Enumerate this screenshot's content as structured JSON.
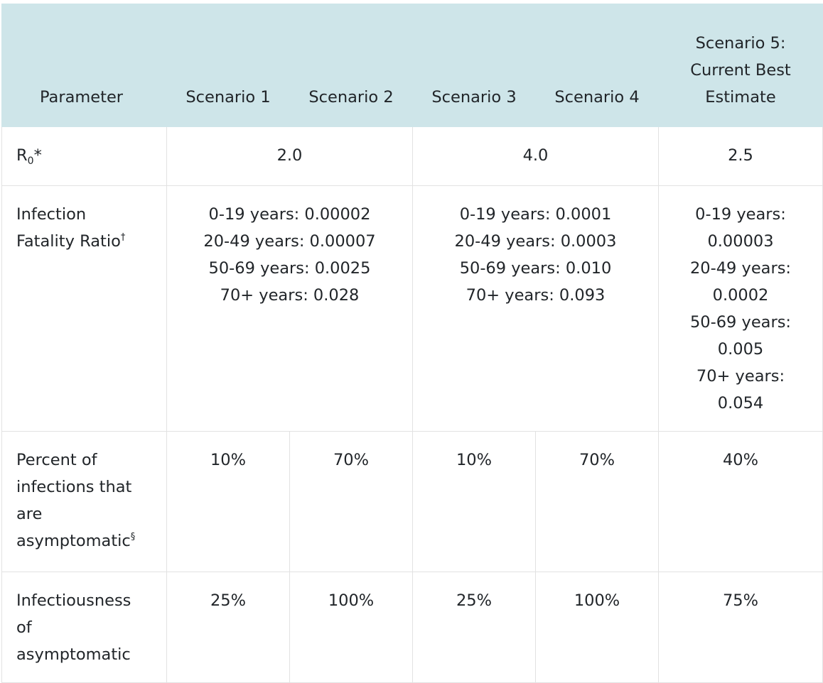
{
  "header": {
    "parameter": "Parameter",
    "scenario1": "Scenario 1",
    "scenario2": "Scenario 2",
    "scenario3": "Scenario 3",
    "scenario4": "Scenario 4",
    "scenario5_line1": "Scenario 5:",
    "scenario5_line2": "Current Best",
    "scenario5_line3": "Estimate"
  },
  "rows": {
    "r0": {
      "label_main": "R",
      "label_sub": "0",
      "label_mark": "*",
      "s12": "2.0",
      "s34": "4.0",
      "s5": "2.5"
    },
    "ifr": {
      "label_line1": "Infection",
      "label_line2": "Fatality Ratio",
      "label_mark": "†",
      "s12": [
        "0-19 years: 0.00002",
        "20-49 years: 0.00007",
        "50-69 years: 0.0025",
        "70+ years: 0.028"
      ],
      "s34": [
        "0-19 years: 0.0001",
        "20-49 years: 0.0003",
        "50-69 years: 0.010",
        "70+ years: 0.093"
      ],
      "s5": [
        "0-19 years:",
        "0.00003",
        "20-49 years:",
        "0.0002",
        "50-69 years:",
        "0.005",
        "70+ years:",
        "0.054"
      ]
    },
    "asymptomatic": {
      "label_line1": "Percent of",
      "label_line2": "infections that",
      "label_line3": "are",
      "label_line4": "asymptomatic",
      "label_mark": "§",
      "s1": "10%",
      "s2": "70%",
      "s3": "10%",
      "s4": "70%",
      "s5": "40%"
    },
    "infectiousness": {
      "label_line1": "Infectiousness",
      "label_line2": "of",
      "label_line3": "asymptomatic",
      "s1": "25%",
      "s2": "100%",
      "s3": "25%",
      "s4": "100%",
      "s5": "75%"
    }
  }
}
